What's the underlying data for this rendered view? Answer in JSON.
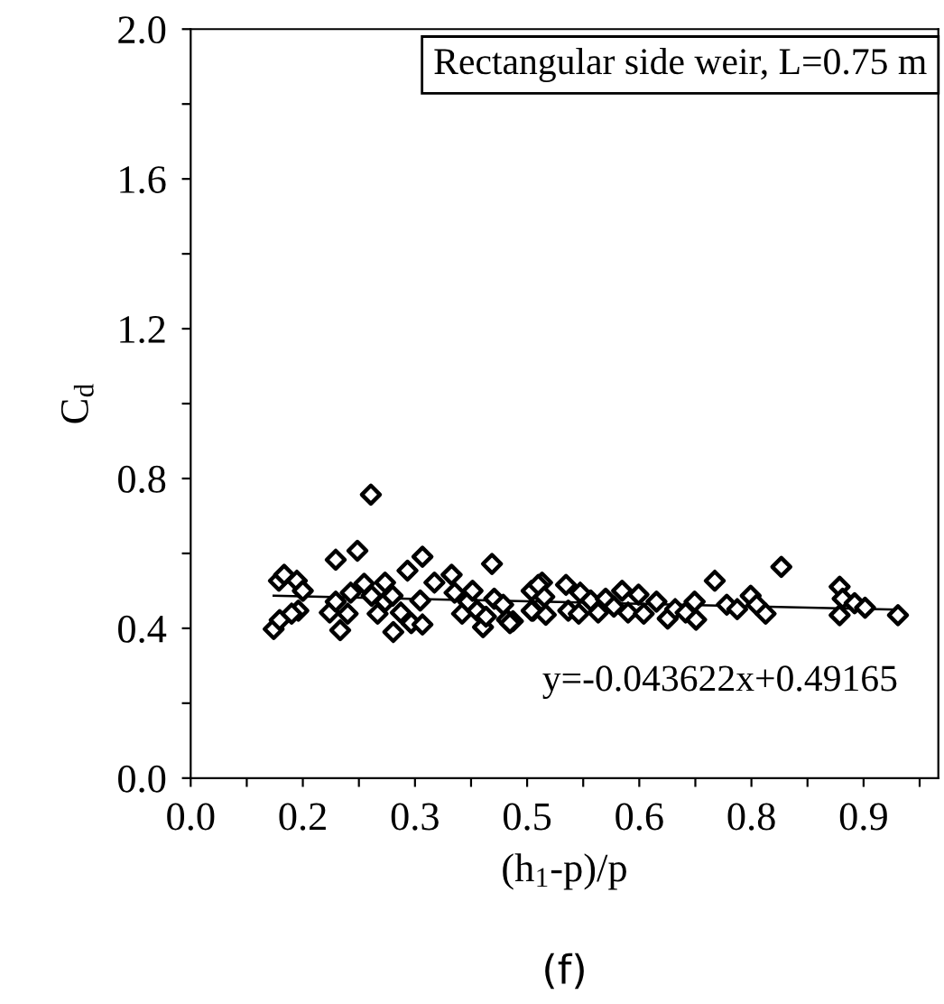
{
  "chart_data": {
    "type": "scatter",
    "xlabel": "(h$_{1}$-p)/p",
    "ylabel": "C$_{d}$",
    "xlim": [
      0,
      1.0
    ],
    "ylim": [
      0,
      2.0
    ],
    "xticks": [
      {
        "value": 0,
        "label": "0.0"
      },
      {
        "value": 0.075,
        "label": null
      },
      {
        "value": 0.15,
        "label": "0.2"
      },
      {
        "value": 0.225,
        "label": null
      },
      0.3,
      {
        "value": 0.375,
        "label": null
      },
      {
        "value": 0.45,
        "label": "0.5"
      },
      {
        "value": 0.525,
        "label": null
      },
      0.6,
      {
        "value": 0.675,
        "label": null
      },
      {
        "value": 0.75,
        "label": "0.8"
      },
      {
        "value": 0.825,
        "label": null
      },
      0.9,
      {
        "value": 0.975,
        "label": null
      }
    ],
    "yticks": [
      {
        "value": 0,
        "label": "0.0"
      },
      {
        "value": 0.2,
        "label": null
      },
      0.4,
      {
        "value": 0.6,
        "label": null
      },
      0.8,
      {
        "value": 1.0,
        "label": null
      },
      1.2,
      {
        "value": 1.4,
        "label": null
      },
      1.6,
      {
        "value": 1.8,
        "label": null
      },
      {
        "value": 2.0,
        "label": "2.0"
      }
    ],
    "series": [
      {
        "color": "#000000",
        "marker": "diamond",
        "x": [
          0.111,
          0.119,
          0.118,
          0.125,
          0.142,
          0.15,
          0.144,
          0.135,
          0.194,
          0.186,
          0.194,
          0.2,
          0.21,
          0.214,
          0.223,
          0.241,
          0.232,
          0.242,
          0.25,
          0.26,
          0.26,
          0.27,
          0.271,
          0.281,
          0.29,
          0.295,
          0.31,
          0.31,
          0.307,
          0.326,
          0.349,
          0.353,
          0.363,
          0.371,
          0.377,
          0.383,
          0.391,
          0.395,
          0.403,
          0.406,
          0.418,
          0.423,
          0.431,
          0.458,
          0.47,
          0.427,
          0.456,
          0.465,
          0.456,
          0.475,
          0.473,
          0.502,
          0.505,
          0.521,
          0.519,
          0.535,
          0.545,
          0.555,
          0.566,
          0.577,
          0.585,
          0.599,
          0.606,
          0.623,
          0.638,
          0.648,
          0.662,
          0.674,
          0.676,
          0.701,
          0.717,
          0.731,
          0.749,
          0.757,
          0.769,
          0.79,
          0.868,
          0.872,
          0.868,
          0.888,
          0.902,
          0.946
        ],
        "values": [
          0.398,
          0.422,
          0.527,
          0.543,
          0.527,
          0.5,
          0.447,
          0.439,
          0.583,
          0.442,
          0.471,
          0.395,
          0.439,
          0.495,
          0.607,
          0.757,
          0.519,
          0.487,
          0.439,
          0.522,
          0.471,
          0.487,
          0.39,
          0.442,
          0.554,
          0.414,
          0.591,
          0.41,
          0.474,
          0.522,
          0.543,
          0.495,
          0.439,
          0.471,
          0.5,
          0.447,
          0.403,
          0.431,
          0.572,
          0.479,
          0.463,
          0.423,
          0.419,
          0.447,
          0.522,
          0.414,
          0.5,
          0.516,
          0.447,
          0.436,
          0.484,
          0.516,
          0.447,
          0.495,
          0.439,
          0.474,
          0.442,
          0.479,
          0.458,
          0.5,
          0.442,
          0.49,
          0.439,
          0.471,
          0.426,
          0.451,
          0.442,
          0.471,
          0.423,
          0.527,
          0.463,
          0.451,
          0.487,
          0.463,
          0.439,
          0.564,
          0.511,
          0.479,
          0.435,
          0.467,
          0.455,
          0.435
        ]
      },
      {
        "type": "line",
        "color": "#000000",
        "marker": "none",
        "line_style": "solid",
        "x": [
          0.111,
          0.946
        ],
        "values": [
          0.487,
          0.45
        ]
      }
    ],
    "annotations": [
      {
        "text": "y=-0.043622x+0.49165",
        "x": 0.946,
        "y": 0.45
      },
      "Rectangular side weir, L=0.75 m",
      "(f)"
    ]
  }
}
